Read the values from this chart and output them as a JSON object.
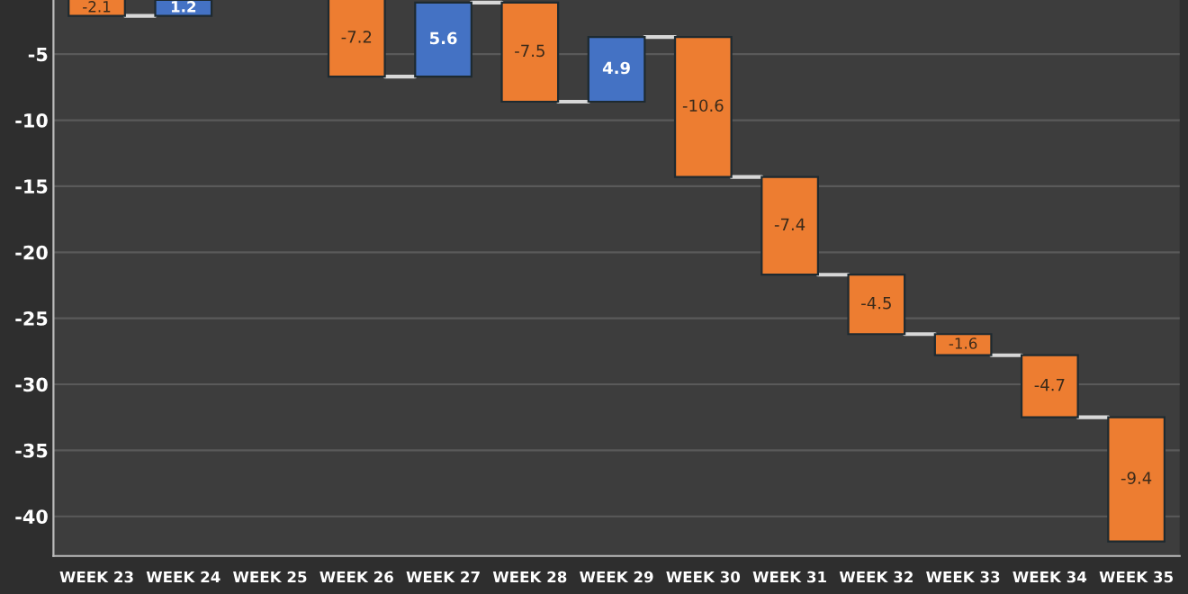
{
  "chart_data": {
    "type": "bar",
    "categories": [
      "WEEK 23",
      "WEEK 24",
      "WEEK 25",
      "WEEK 26",
      "WEEK 27",
      "WEEK 28",
      "WEEK 29",
      "WEEK 30",
      "WEEK 31",
      "WEEK 32",
      "WEEK 33",
      "WEEK 34",
      "WEEK 35"
    ],
    "values": [
      -2.1,
      1.2,
      null,
      -7.2,
      5.6,
      -7.5,
      4.9,
      -10.6,
      -7.4,
      -4.5,
      -1.6,
      -4.7,
      -9.4
    ],
    "base": [
      0,
      -2.1,
      null,
      0.5,
      -6.7,
      -1.1,
      -8.6,
      -3.7,
      -14.3,
      -21.7,
      -26.2,
      -27.8,
      -32.5
    ],
    "colors": [
      "#ed7d31",
      "#4472c4",
      null,
      "#ed7d31",
      "#4472c4",
      "#ed7d31",
      "#4472c4",
      "#ed7d31",
      "#ed7d31",
      "#ed7d31",
      "#ed7d31",
      "#ed7d31",
      "#ed7d31"
    ],
    "ylim": [
      -43,
      -0.9
    ],
    "yticks": [
      -5,
      -10,
      -15,
      -20,
      -25,
      -30,
      -35,
      -40
    ],
    "grid": "y",
    "data_labels": true
  }
}
